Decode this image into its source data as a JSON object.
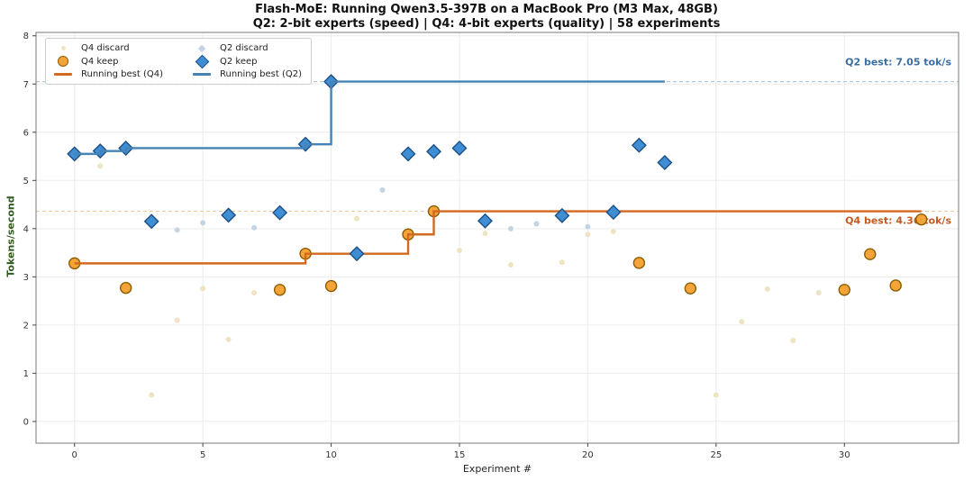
{
  "title": "Flash-MoE: Running Qwen3.5-397B on a MacBook Pro (M3 Max, 48GB)",
  "subtitle": "Q2: 2-bit experts (speed) | Q4: 4-bit experts (quality) | 58 experiments",
  "legend": {
    "q4_discard": "Q4 discard",
    "q4_keep": "Q4 keep",
    "running_q4": "Running best (Q4)",
    "q2_discard": "Q2 discard",
    "q2_keep": "Q2 keep",
    "running_q2": "Running best (Q2)"
  },
  "colors": {
    "q4_discard": "#eee4c2",
    "q4_keep_fill": "#f5a43a",
    "q4_keep_edge": "#8c5e00",
    "q4_line": "#d2691e",
    "q2_discard": "#c6d3e0",
    "q2_keep_fill": "#3f8ed4",
    "q2_keep_edge": "#1c4f86",
    "q2_line": "#4682b4",
    "q2_ref_dash": "#b3cadd",
    "q4_ref_dash": "#eccb9f",
    "q2_annotation": "#3a6ea5",
    "q4_annotation": "#c35a1f",
    "grid": "#ececec",
    "spine": "#777777",
    "tick_text": "#333333",
    "ylabel_text": "#2d5a1e"
  },
  "chart_data": {
    "type": "scatter",
    "xlabel": "Experiment #",
    "ylabel": "Tokens/second",
    "xlim": [
      -1.5,
      34.45
    ],
    "ylim": [
      -0.45,
      8.07
    ],
    "xticks": [
      0,
      5,
      10,
      15,
      20,
      25,
      30
    ],
    "yticks": [
      0,
      1,
      2,
      3,
      4,
      5,
      6,
      7,
      8
    ],
    "grid": true,
    "legend_position": "upper-left",
    "series": [
      {
        "name": "Q4 discard",
        "kind": "scatter",
        "marker": "dot",
        "color": "#eee4c2",
        "points": [
          [
            1,
            5.3
          ],
          [
            3,
            0.55
          ],
          [
            4,
            2.1
          ],
          [
            5,
            2.76
          ],
          [
            6,
            1.7
          ],
          [
            7,
            2.67
          ],
          [
            11,
            4.21
          ],
          [
            15,
            3.55
          ],
          [
            16,
            3.9
          ],
          [
            17,
            3.25
          ],
          [
            19,
            3.3
          ],
          [
            20,
            3.88
          ],
          [
            21,
            3.94
          ],
          [
            25,
            0.55
          ],
          [
            26,
            2.07
          ],
          [
            27,
            2.75
          ],
          [
            28,
            1.68
          ],
          [
            29,
            2.67
          ]
        ]
      },
      {
        "name": "Q4 keep",
        "kind": "scatter",
        "marker": "circle",
        "color": "#f5a43a",
        "edge": "#8c5e00",
        "points": [
          [
            0,
            3.28
          ],
          [
            2,
            2.77
          ],
          [
            8,
            2.73
          ],
          [
            9,
            3.48
          ],
          [
            10,
            2.81
          ],
          [
            13,
            3.88
          ],
          [
            14,
            4.36
          ],
          [
            22,
            3.29
          ],
          [
            24,
            2.76
          ],
          [
            30,
            2.73
          ],
          [
            31,
            3.47
          ],
          [
            32,
            2.82
          ],
          [
            33,
            4.19
          ]
        ]
      },
      {
        "name": "Running best (Q4)",
        "kind": "step-line",
        "color": "#d2691e",
        "points": [
          [
            0,
            3.28
          ],
          [
            9,
            3.28
          ],
          [
            9,
            3.48
          ],
          [
            13,
            3.48
          ],
          [
            13,
            3.88
          ],
          [
            14,
            3.88
          ],
          [
            14,
            4.36
          ],
          [
            33,
            4.36
          ]
        ]
      },
      {
        "name": "Q2 discard",
        "kind": "scatter",
        "marker": "dot",
        "color": "#c6d3e0",
        "points": [
          [
            4,
            3.97
          ],
          [
            5,
            4.12
          ],
          [
            7,
            4.02
          ],
          [
            12,
            4.8
          ],
          [
            17,
            4.0
          ],
          [
            18,
            4.1
          ],
          [
            20,
            4.04
          ]
        ]
      },
      {
        "name": "Q2 keep",
        "kind": "scatter",
        "marker": "diamond",
        "color": "#3f8ed4",
        "edge": "#1c4f86",
        "points": [
          [
            0,
            5.55
          ],
          [
            1,
            5.61
          ],
          [
            2,
            5.67
          ],
          [
            3,
            4.15
          ],
          [
            6,
            4.28
          ],
          [
            8,
            4.33
          ],
          [
            9,
            5.75
          ],
          [
            10,
            7.05
          ],
          [
            11,
            3.48
          ],
          [
            13,
            5.55
          ],
          [
            14,
            5.6
          ],
          [
            15,
            5.67
          ],
          [
            16,
            4.16
          ],
          [
            19,
            4.27
          ],
          [
            21,
            4.34
          ],
          [
            22,
            5.73
          ],
          [
            23,
            5.37
          ]
        ]
      },
      {
        "name": "Running best (Q2)",
        "kind": "step-line",
        "color": "#4682b4",
        "points": [
          [
            0,
            5.55
          ],
          [
            1,
            5.55
          ],
          [
            1,
            5.61
          ],
          [
            2,
            5.61
          ],
          [
            2,
            5.67
          ],
          [
            9,
            5.67
          ],
          [
            9,
            5.75
          ],
          [
            10,
            5.75
          ],
          [
            10,
            7.05
          ],
          [
            23,
            7.05
          ]
        ]
      }
    ],
    "reference_lines": [
      {
        "y": 7.05,
        "dash_color": "#b3cadd",
        "label": "Q2 best: 7.05 tok/s",
        "label_color": "#3a6ea5",
        "label_offset": -18
      },
      {
        "y": 4.36,
        "dash_color": "#eccb9f",
        "label": "Q4 best: 4.36 tok/s",
        "label_color": "#c35a1f",
        "label_offset": 14
      }
    ]
  }
}
